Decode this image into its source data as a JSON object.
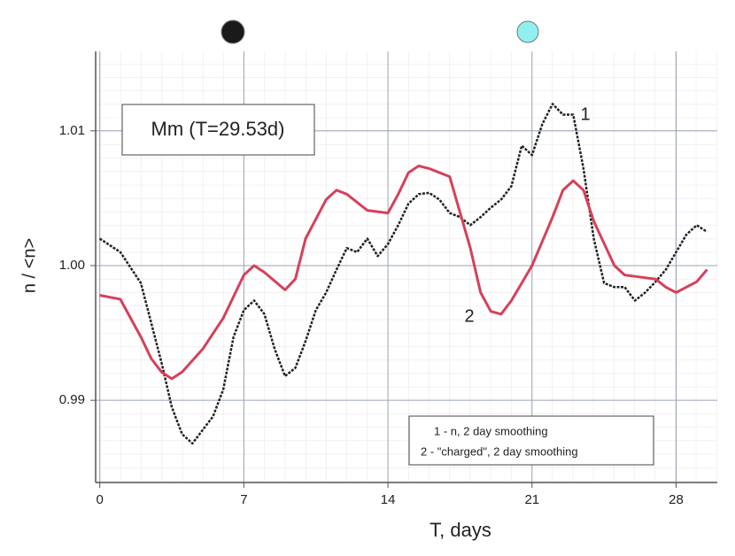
{
  "chart_data": {
    "type": "line",
    "annotation": "Mm (T=29.53d)",
    "xlabel": "T, days",
    "ylabel": "n / <n>",
    "xlim": [
      -0.2,
      30.0
    ],
    "ylim": [
      0.9839,
      1.0159
    ],
    "xticks": [
      0,
      7,
      14,
      21,
      28
    ],
    "yticks": [
      0.99,
      {
        "value": 1,
        "label": "1.00"
      },
      1.01
    ],
    "grid": true,
    "series": [
      {
        "name": "1 - n, 2 day smoothing",
        "label": "1",
        "color": "#222222",
        "x": [
          0,
          1,
          2,
          3,
          3.5,
          4,
          4.5,
          5,
          5.5,
          6,
          6.5,
          7,
          7.5,
          8,
          8.5,
          9,
          9.5,
          10,
          10.5,
          11,
          11.5,
          12,
          12.5,
          13,
          13.5,
          14,
          14.5,
          15,
          15.5,
          16,
          16.5,
          17,
          17.5,
          18,
          18.5,
          19,
          19.5,
          20,
          20.5,
          21,
          21.5,
          22,
          22.5,
          23,
          23.5,
          24,
          24.5,
          25,
          25.5,
          26,
          26.5,
          27,
          27.5,
          28,
          28.5,
          29,
          29.5
        ],
        "values": [
          1.002,
          1.001,
          0.9987,
          0.9928,
          0.9895,
          0.9875,
          0.9868,
          0.9878,
          0.9888,
          0.9908,
          0.9947,
          0.9967,
          0.9974,
          0.9964,
          0.9938,
          0.9918,
          0.9924,
          0.9944,
          0.9967,
          0.998,
          0.9997,
          1.0013,
          1.001,
          1.002,
          1.0007,
          1.0016,
          1.003,
          1.0046,
          1.0053,
          1.0054,
          1.0049,
          1.0039,
          1.0036,
          1.003,
          1.0036,
          1.0043,
          1.0049,
          1.0059,
          1.0089,
          1.0082,
          1.0105,
          1.012,
          1.0112,
          1.0112,
          1.0072,
          1.002,
          0.9987,
          0.9984,
          0.9984,
          0.9974,
          0.998,
          0.9988,
          0.9997,
          1.001,
          1.0023,
          1.003,
          1.0025
        ]
      },
      {
        "name": "2 - \"charged\", 2 day smoothing",
        "label": "2",
        "color": "#d6405a",
        "x": [
          0,
          1,
          2,
          2.5,
          3,
          3.5,
          4,
          5,
          6,
          7,
          7.5,
          8,
          9,
          9.5,
          10,
          11,
          11.5,
          12,
          13,
          14,
          14.5,
          15,
          15.5,
          16,
          17,
          18,
          18.5,
          19,
          19.5,
          20,
          21,
          22,
          22.5,
          23,
          23.5,
          24,
          25,
          25.5,
          26,
          27,
          27.5,
          28,
          29,
          29.5
        ],
        "values": [
          0.9978,
          0.9975,
          0.9947,
          0.9931,
          0.9921,
          0.9916,
          0.9921,
          0.9938,
          0.9961,
          0.9993,
          1.0,
          0.9995,
          0.9982,
          0.999,
          1.002,
          1.0049,
          1.0056,
          1.0053,
          1.0041,
          1.0039,
          1.0053,
          1.0069,
          1.0074,
          1.0072,
          1.0066,
          1.0013,
          0.998,
          0.9966,
          0.9964,
          0.9974,
          1.0,
          1.0036,
          1.0056,
          1.0063,
          1.0056,
          1.0033,
          1.0,
          0.9993,
          0.9992,
          0.999,
          0.9984,
          0.998,
          0.9988,
          0.9997
        ]
      }
    ]
  }
}
